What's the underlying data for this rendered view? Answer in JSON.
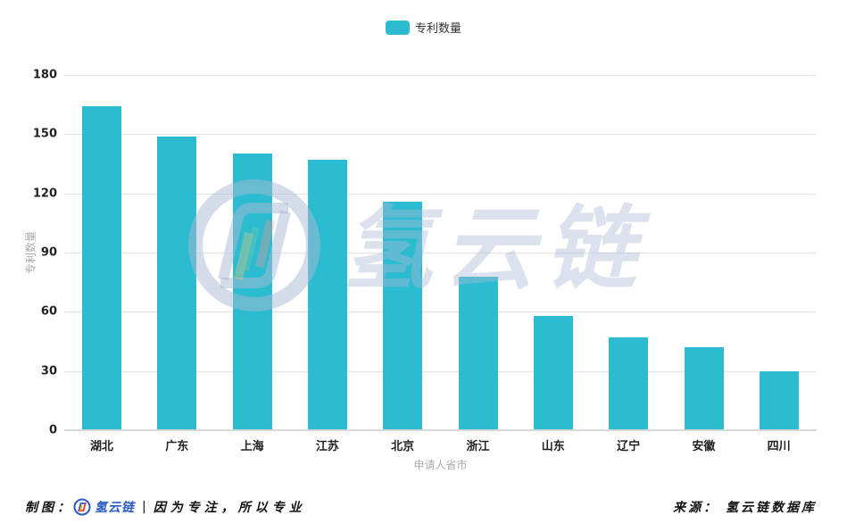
{
  "legend": {
    "label": "专利数量",
    "color": "#2bbcd1"
  },
  "axes": {
    "ylabel": "专利数量",
    "xlabel": "申请人省市",
    "yticks": [
      "0",
      "30",
      "60",
      "90",
      "120",
      "150",
      "180"
    ]
  },
  "footer": {
    "made_by_label": "制图：",
    "brand": "氢云链",
    "separator": "|",
    "slogan": "因为专注，所以专业",
    "source": "来源：  氢云链数据库"
  },
  "watermark": {
    "text": "氢云链"
  },
  "chart_data": {
    "type": "bar",
    "title": "",
    "categories": [
      "湖北",
      "广东",
      "上海",
      "江苏",
      "北京",
      "浙江",
      "山东",
      "辽宁",
      "安徽",
      "四川"
    ],
    "series": [
      {
        "name": "专利数量",
        "values": [
          164,
          149,
          140,
          137,
          116,
          78,
          58,
          47,
          42,
          30
        ],
        "color": "#2bbcd1"
      }
    ],
    "xlabel": "申请人省市",
    "ylabel": "专利数量",
    "ylim": [
      0,
      180
    ],
    "yticks": [
      0,
      30,
      60,
      90,
      120,
      150,
      180
    ],
    "grid": true,
    "legend_position": "top-center"
  }
}
